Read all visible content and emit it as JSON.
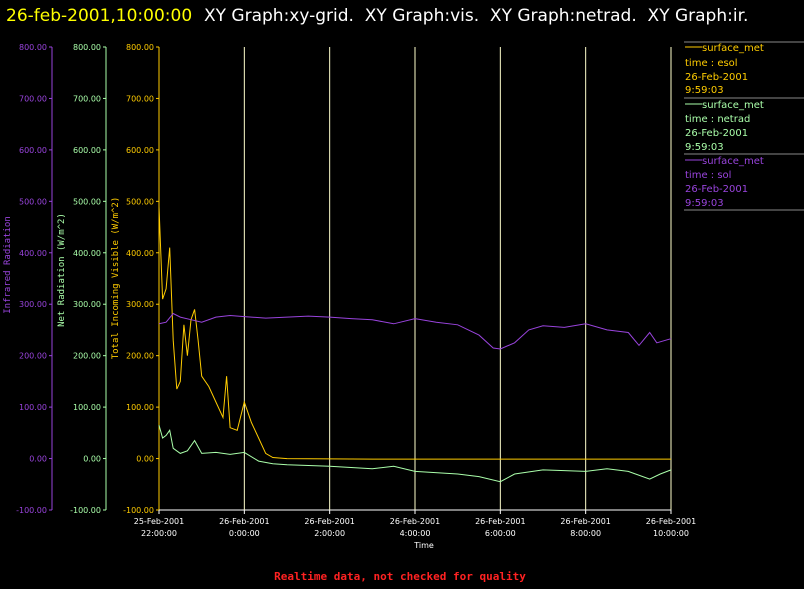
{
  "header": {
    "date_label": "26-feb-2001,10:00:00",
    "graphs_label": "XY Graph:xy-grid.  XY Graph:vis.  XY Graph:netrad.  XY Graph:ir."
  },
  "colors": {
    "ir": "#9944dd",
    "net": "#aaffaa",
    "vis": "#ffcc00",
    "grid": "#ffffcc",
    "header_date": "#ffff00",
    "header_text": "#ffffff",
    "footer": "#ff2222",
    "background": "#000000"
  },
  "legend": [
    {
      "line1": "surface_met",
      "line2": "time : esol",
      "line3": "26-Feb-2001",
      "line4": "9:59:03",
      "color": "#ffcc00"
    },
    {
      "line1": "surface_met",
      "line2": "time : netrad",
      "line3": "26-Feb-2001",
      "line4": "9:59:03",
      "color": "#aaffaa"
    },
    {
      "line1": "surface_met",
      "line2": "time : sol",
      "line3": "26-Feb-2001",
      "line4": "9:59:03",
      "color": "#9944dd"
    }
  ],
  "footer": {
    "text": "Realtime data, not checked for quality"
  },
  "chart_data": {
    "type": "line",
    "title": "",
    "xlabel": "Time",
    "x_ticks": [
      {
        "date": "25-Feb-2001",
        "time": "22:00:00"
      },
      {
        "date": "26-Feb-2001",
        "time": "0:00:00"
      },
      {
        "date": "26-Feb-2001",
        "time": "2:00:00"
      },
      {
        "date": "26-Feb-2001",
        "time": "4:00:00"
      },
      {
        "date": "26-Feb-2001",
        "time": "6:00:00"
      },
      {
        "date": "26-Feb-2001",
        "time": "8:00:00"
      },
      {
        "date": "26-Feb-2001",
        "time": "10:00:00"
      }
    ],
    "xlim": [
      "2001-02-25 22:00",
      "2001-02-26 10:00"
    ],
    "ylim": [
      -100,
      800
    ],
    "y_ticks": [
      "800.00",
      "700.00",
      "600.00",
      "500.00",
      "400.00",
      "300.00",
      "200.00",
      "100.00",
      "0.00",
      "-100.00"
    ],
    "y_axes": [
      {
        "label": "Infrared Radiation",
        "color": "#9944dd"
      },
      {
        "label": "Net Radiation (W/m^2)",
        "color": "#aaffaa"
      },
      {
        "label": "Total Incoming Visible (W/m^2)",
        "color": "#ffcc00"
      }
    ],
    "grid": "vertical",
    "legend_position": "right",
    "series": [
      {
        "name": "surface_met time : esol",
        "color": "#ffcc00",
        "points": [
          [
            "2001-02-25 22:00",
            490
          ],
          [
            "2001-02-25 22:05",
            310
          ],
          [
            "2001-02-25 22:10",
            330
          ],
          [
            "2001-02-25 22:15",
            410
          ],
          [
            "2001-02-25 22:20",
            230
          ],
          [
            "2001-02-25 22:25",
            135
          ],
          [
            "2001-02-25 22:30",
            150
          ],
          [
            "2001-02-25 22:35",
            260
          ],
          [
            "2001-02-25 22:40",
            200
          ],
          [
            "2001-02-25 22:45",
            270
          ],
          [
            "2001-02-25 22:50",
            290
          ],
          [
            "2001-02-25 22:55",
            230
          ],
          [
            "2001-02-25 23:00",
            160
          ],
          [
            "2001-02-25 23:10",
            140
          ],
          [
            "2001-02-25 23:20",
            110
          ],
          [
            "2001-02-25 23:30",
            80
          ],
          [
            "2001-02-25 23:35",
            160
          ],
          [
            "2001-02-25 23:40",
            60
          ],
          [
            "2001-02-25 23:50",
            55
          ],
          [
            "2001-02-26 00:00",
            110
          ],
          [
            "2001-02-26 00:10",
            70
          ],
          [
            "2001-02-26 00:20",
            40
          ],
          [
            "2001-02-26 00:30",
            10
          ],
          [
            "2001-02-26 00:40",
            2
          ],
          [
            "2001-02-26 01:00",
            0
          ],
          [
            "2001-02-26 03:00",
            -1
          ],
          [
            "2001-02-26 05:00",
            -1
          ],
          [
            "2001-02-26 07:00",
            -1
          ],
          [
            "2001-02-26 09:00",
            -1
          ],
          [
            "2001-02-26 10:00",
            -1
          ]
        ]
      },
      {
        "name": "surface_met time : netrad",
        "color": "#aaffaa",
        "points": [
          [
            "2001-02-25 22:00",
            65
          ],
          [
            "2001-02-25 22:05",
            40
          ],
          [
            "2001-02-25 22:10",
            45
          ],
          [
            "2001-02-25 22:15",
            55
          ],
          [
            "2001-02-25 22:20",
            20
          ],
          [
            "2001-02-25 22:30",
            10
          ],
          [
            "2001-02-25 22:40",
            15
          ],
          [
            "2001-02-25 22:50",
            35
          ],
          [
            "2001-02-25 23:00",
            10
          ],
          [
            "2001-02-25 23:20",
            12
          ],
          [
            "2001-02-25 23:40",
            8
          ],
          [
            "2001-02-26 00:00",
            12
          ],
          [
            "2001-02-26 00:20",
            -5
          ],
          [
            "2001-02-26 00:40",
            -10
          ],
          [
            "2001-02-26 01:00",
            -12
          ],
          [
            "2001-02-26 02:00",
            -15
          ],
          [
            "2001-02-26 03:00",
            -20
          ],
          [
            "2001-02-26 03:30",
            -15
          ],
          [
            "2001-02-26 04:00",
            -25
          ],
          [
            "2001-02-26 05:00",
            -30
          ],
          [
            "2001-02-26 05:30",
            -35
          ],
          [
            "2001-02-26 06:00",
            -45
          ],
          [
            "2001-02-26 06:20",
            -30
          ],
          [
            "2001-02-26 07:00",
            -22
          ],
          [
            "2001-02-26 08:00",
            -25
          ],
          [
            "2001-02-26 08:30",
            -20
          ],
          [
            "2001-02-26 09:00",
            -25
          ],
          [
            "2001-02-26 09:30",
            -40
          ],
          [
            "2001-02-26 09:45",
            -30
          ],
          [
            "2001-02-26 10:00",
            -22
          ]
        ]
      },
      {
        "name": "surface_met time : sol",
        "color": "#9944dd",
        "points": [
          [
            "2001-02-25 22:00",
            262
          ],
          [
            "2001-02-25 22:10",
            265
          ],
          [
            "2001-02-25 22:20",
            282
          ],
          [
            "2001-02-25 22:30",
            275
          ],
          [
            "2001-02-25 22:45",
            270
          ],
          [
            "2001-02-25 23:00",
            265
          ],
          [
            "2001-02-25 23:20",
            275
          ],
          [
            "2001-02-25 23:40",
            278
          ],
          [
            "2001-02-26 00:00",
            276
          ],
          [
            "2001-02-26 00:30",
            273
          ],
          [
            "2001-02-26 01:00",
            275
          ],
          [
            "2001-02-26 01:30",
            277
          ],
          [
            "2001-02-26 02:00",
            275
          ],
          [
            "2001-02-26 02:30",
            272
          ],
          [
            "2001-02-26 03:00",
            270
          ],
          [
            "2001-02-26 03:30",
            262
          ],
          [
            "2001-02-26 04:00",
            272
          ],
          [
            "2001-02-26 04:30",
            265
          ],
          [
            "2001-02-26 05:00",
            260
          ],
          [
            "2001-02-26 05:30",
            240
          ],
          [
            "2001-02-26 05:50",
            215
          ],
          [
            "2001-02-26 06:00",
            213
          ],
          [
            "2001-02-26 06:20",
            225
          ],
          [
            "2001-02-26 06:40",
            250
          ],
          [
            "2001-02-26 07:00",
            258
          ],
          [
            "2001-02-26 07:30",
            255
          ],
          [
            "2001-02-26 08:00",
            262
          ],
          [
            "2001-02-26 08:30",
            250
          ],
          [
            "2001-02-26 09:00",
            245
          ],
          [
            "2001-02-26 09:15",
            220
          ],
          [
            "2001-02-26 09:30",
            245
          ],
          [
            "2001-02-26 09:40",
            225
          ],
          [
            "2001-02-26 10:00",
            233
          ]
        ]
      }
    ]
  }
}
